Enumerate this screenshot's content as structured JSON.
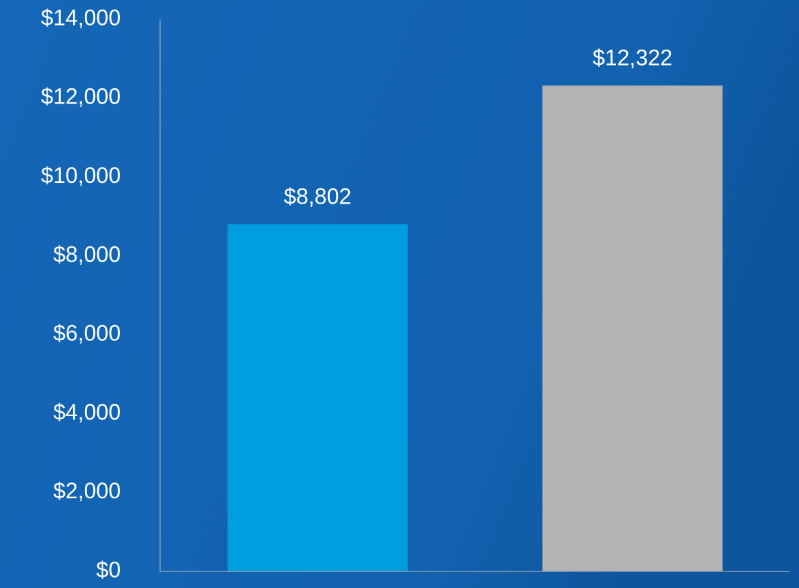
{
  "chart_data": {
    "type": "bar",
    "categories": [
      null,
      null
    ],
    "values": [
      8802,
      12322
    ],
    "value_labels": [
      "$8,802",
      "$12,322"
    ],
    "colors": [
      "#009ddf",
      "#b3b3b3"
    ],
    "ylim": [
      0,
      14000
    ],
    "yticks": [
      {
        "value": 0,
        "label": "$0"
      },
      {
        "value": 2000,
        "label": "$2,000"
      },
      {
        "value": 4000,
        "label": "$4,000"
      },
      {
        "value": 6000,
        "label": "$6,000"
      },
      {
        "value": 8000,
        "label": "$8,000"
      },
      {
        "value": 10000,
        "label": "$10,000"
      },
      {
        "value": 12000,
        "label": "$12,000"
      },
      {
        "value": 14000,
        "label": "$14,000"
      }
    ],
    "grid": false
  }
}
